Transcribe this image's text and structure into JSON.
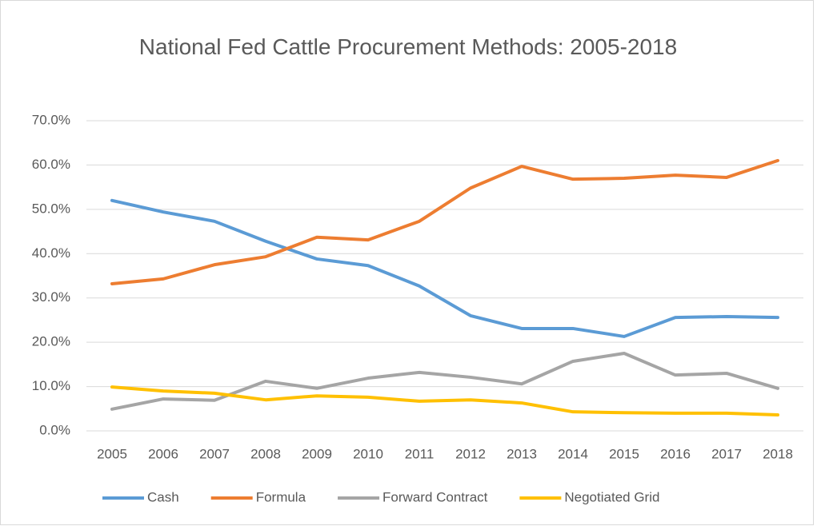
{
  "chart_data": {
    "type": "line",
    "title": "National Fed Cattle Procurement Methods: 2005-2018",
    "categories": [
      "2005",
      "2006",
      "2007",
      "2008",
      "2009",
      "2010",
      "2011",
      "2012",
      "2013",
      "2014",
      "2015",
      "2016",
      "2017",
      "2018"
    ],
    "series": [
      {
        "name": "Cash",
        "color": "#5b9bd5",
        "values": [
          52.0,
          49.4,
          47.3,
          42.8,
          38.8,
          37.3,
          32.7,
          26.0,
          23.1,
          23.1,
          21.3,
          25.6,
          25.8,
          25.6
        ]
      },
      {
        "name": "Formula",
        "color": "#ed7d31",
        "values": [
          33.2,
          34.3,
          37.5,
          39.3,
          43.7,
          43.1,
          47.3,
          54.8,
          59.7,
          56.8,
          57.0,
          57.7,
          57.2,
          61.0
        ]
      },
      {
        "name": "Forward Contract",
        "color": "#a5a5a5",
        "values": [
          4.9,
          7.2,
          6.9,
          11.2,
          9.6,
          11.9,
          13.2,
          12.1,
          10.6,
          15.7,
          17.5,
          12.6,
          13.0,
          9.6
        ]
      },
      {
        "name": "Negotiated Grid",
        "color": "#ffc000",
        "values": [
          9.9,
          9.0,
          8.5,
          7.0,
          7.9,
          7.6,
          6.7,
          7.0,
          6.3,
          4.3,
          4.1,
          4.0,
          4.0,
          3.6
        ]
      }
    ],
    "ylim": [
      0,
      70
    ],
    "yticks": [
      {
        "value": 0,
        "label": "0.0%"
      },
      {
        "value": 10,
        "label": "10.0%"
      },
      {
        "value": 20,
        "label": "20.0%"
      },
      {
        "value": 30,
        "label": "30.0%"
      },
      {
        "value": 40,
        "label": "40.0%"
      },
      {
        "value": 50,
        "label": "50.0%"
      },
      {
        "value": 60,
        "label": "60.0%"
      },
      {
        "value": 70,
        "label": "70.0%"
      }
    ],
    "grid": true,
    "legend": "bottom"
  }
}
